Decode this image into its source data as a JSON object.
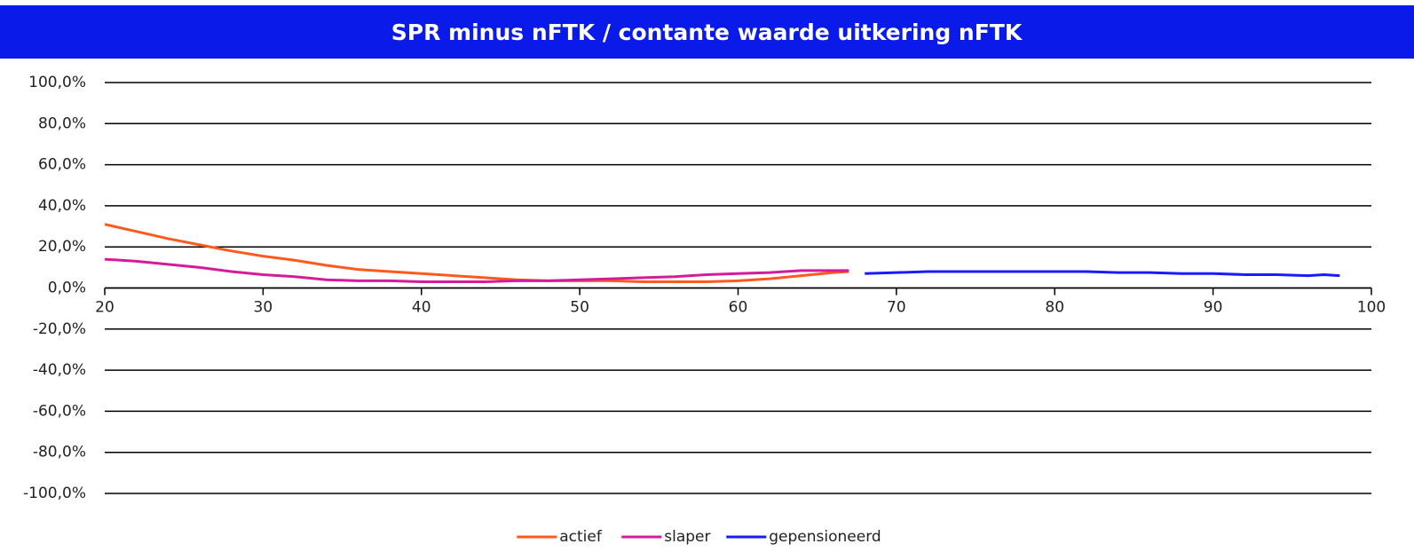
{
  "chart_data": {
    "type": "line",
    "title": "SPR minus nFTK / contante waarde uitkering nFTK",
    "xlim": [
      20,
      100
    ],
    "xticks": [
      20,
      30,
      40,
      50,
      60,
      70,
      80,
      90,
      100
    ],
    "ylim": [
      -100,
      100
    ],
    "yticks": [
      {
        "value": -100,
        "label": "-100,0%"
      },
      {
        "value": -80,
        "label": "-80,0%"
      },
      {
        "value": -60,
        "label": "-60,0%"
      },
      {
        "value": -40,
        "label": "-40,0%"
      },
      {
        "value": -20,
        "label": "-20,0%"
      },
      {
        "value": 0,
        "label": "0,0%"
      },
      {
        "value": 20,
        "label": "20,0%"
      },
      {
        "value": 40,
        "label": "40,0%"
      },
      {
        "value": 60,
        "label": "60,0%"
      },
      {
        "value": 80,
        "label": "80,0%"
      },
      {
        "value": 100,
        "label": "100,0%"
      }
    ],
    "grid": true,
    "legend": "bottom",
    "series": [
      {
        "name": "actief",
        "color": "#ff5a1e",
        "x": [
          20,
          22,
          24,
          26,
          28,
          30,
          32,
          34,
          36,
          38,
          40,
          42,
          44,
          46,
          48,
          50,
          52,
          54,
          56,
          58,
          60,
          62,
          64,
          66,
          67
        ],
        "values": [
          31,
          27.5,
          24,
          21,
          18,
          15.5,
          13.5,
          11,
          9,
          8,
          7,
          6,
          5,
          4,
          3.5,
          3.5,
          3.5,
          3,
          3,
          3,
          3.5,
          4.5,
          6,
          7.5,
          8
        ]
      },
      {
        "name": "slaper",
        "color": "#d41b9c",
        "x": [
          20,
          22,
          24,
          26,
          28,
          30,
          32,
          34,
          36,
          38,
          40,
          42,
          44,
          46,
          48,
          50,
          52,
          54,
          56,
          58,
          60,
          62,
          64,
          66,
          67
        ],
        "values": [
          14,
          13,
          11.5,
          10,
          8,
          6.5,
          5.5,
          4,
          3.5,
          3.5,
          3,
          3,
          3,
          3.5,
          3.5,
          4,
          4.5,
          5,
          5.5,
          6.5,
          7,
          7.5,
          8.5,
          8.5,
          8.5
        ]
      },
      {
        "name": "gepensioneerd",
        "color": "#1a1aff",
        "x": [
          68,
          70,
          72,
          74,
          76,
          78,
          80,
          82,
          84,
          86,
          88,
          90,
          92,
          94,
          96,
          97,
          98
        ],
        "values": [
          7,
          7.5,
          8,
          8,
          8,
          8,
          8,
          8,
          7.5,
          7.5,
          7,
          7,
          6.5,
          6.5,
          6,
          6.5,
          6
        ]
      }
    ]
  }
}
